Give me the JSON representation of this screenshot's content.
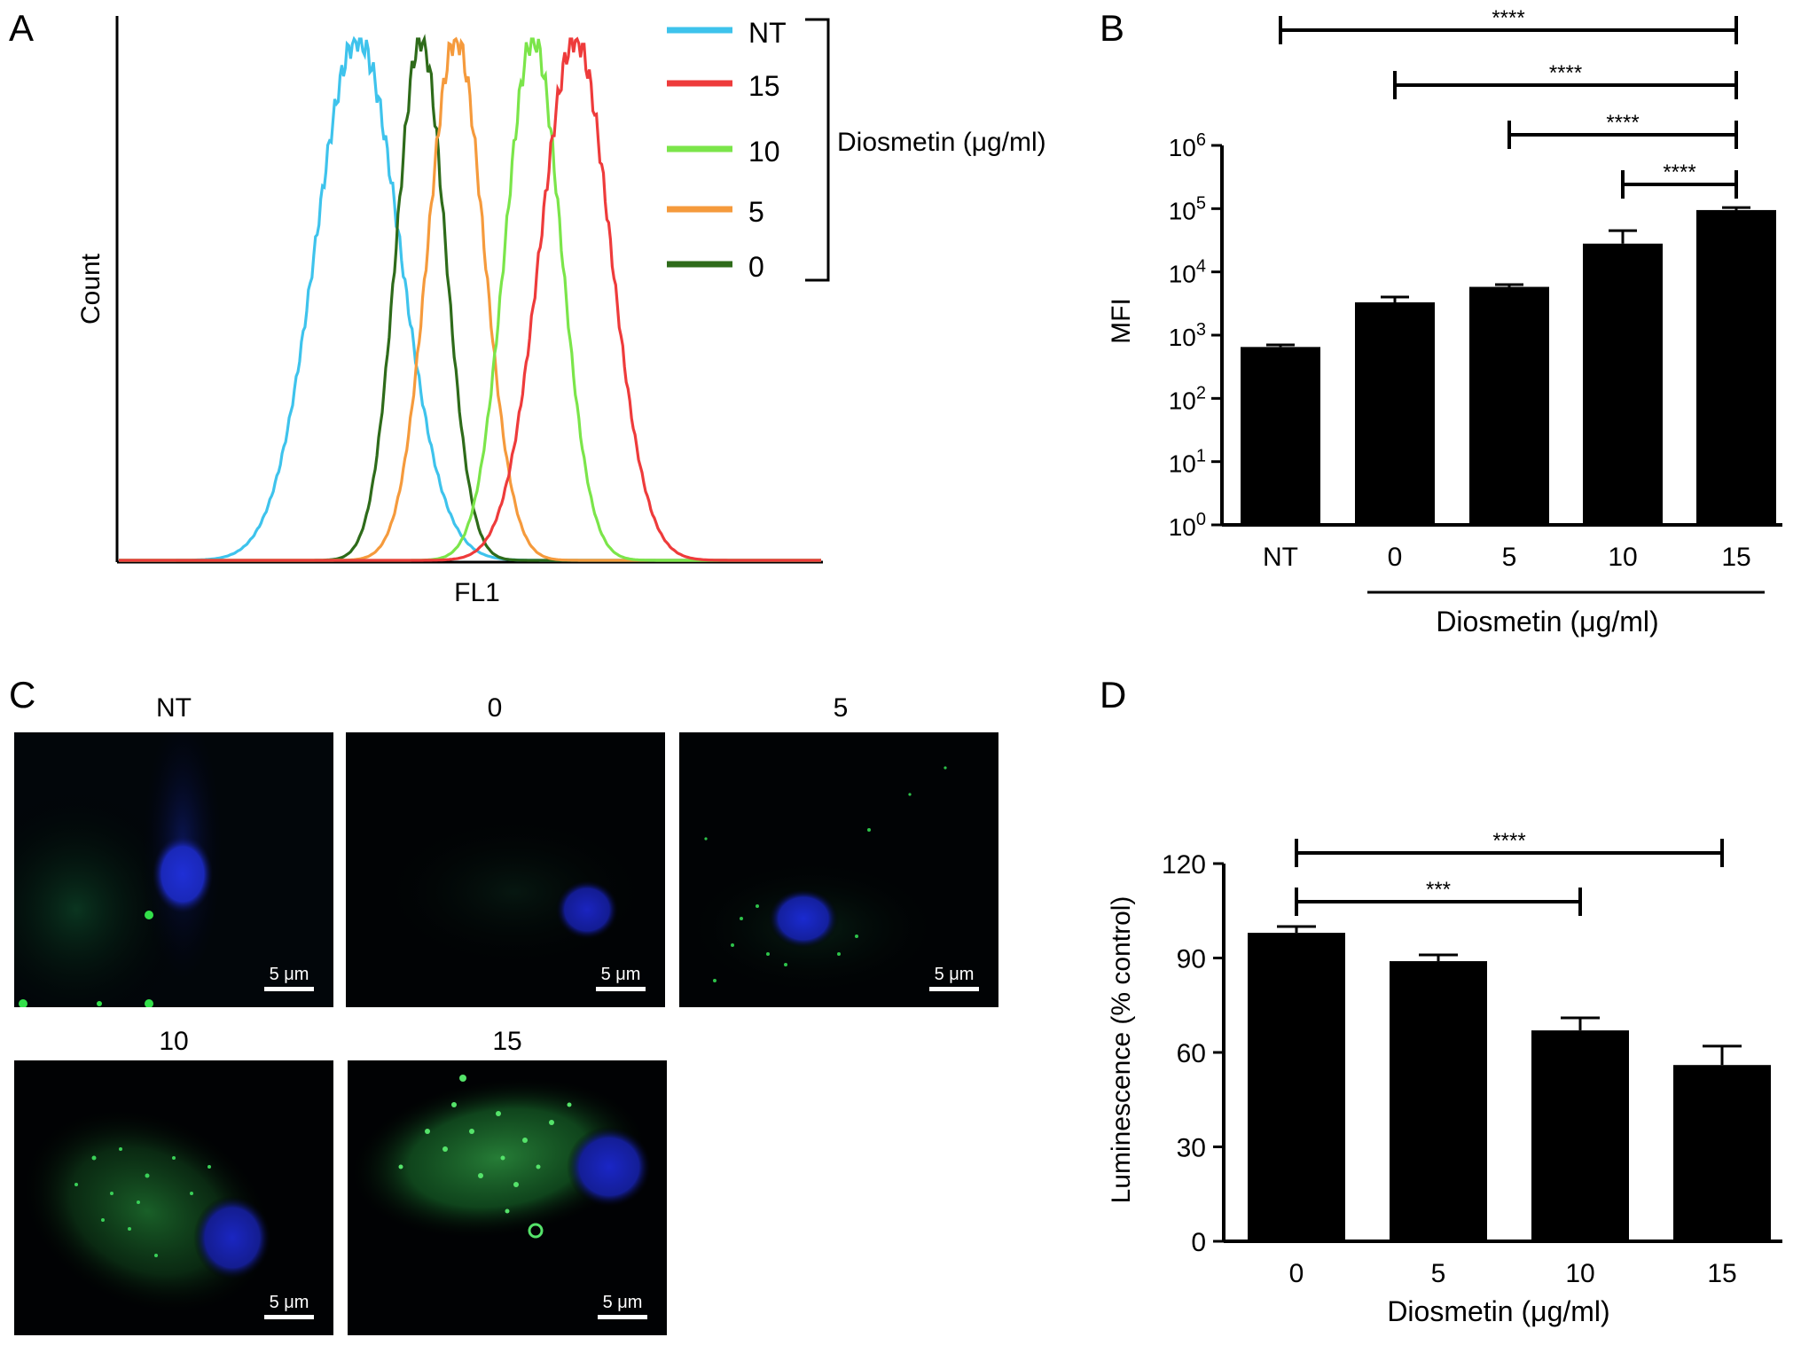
{
  "panels": {
    "a": {
      "letter": "A",
      "ylabel": "Count",
      "xlabel": "FL1",
      "legend_bracket_label": "Diosmetin (μg/ml)",
      "legend": [
        {
          "label": "NT",
          "color": "#3ec3ec"
        },
        {
          "label": "15",
          "color": "#ee3b3b"
        },
        {
          "label": "10",
          "color": "#7be54a"
        },
        {
          "label": "5",
          "color": "#f59a3c"
        },
        {
          "label": "0",
          "color": "#2e6b1a"
        }
      ]
    },
    "b": {
      "letter": "B",
      "ylabel": "MFI",
      "xgroup_label": "Diosmetin (μg/ml)",
      "yticks": [
        {
          "base": "10",
          "exp": "0"
        },
        {
          "base": "10",
          "exp": "1"
        },
        {
          "base": "10",
          "exp": "2"
        },
        {
          "base": "10",
          "exp": "3"
        },
        {
          "base": "10",
          "exp": "4"
        },
        {
          "base": "10",
          "exp": "5"
        },
        {
          "base": "10",
          "exp": "6"
        }
      ],
      "sig_label": "****"
    },
    "c": {
      "letter": "C",
      "scale_label": "5 μm",
      "titles": [
        "NT",
        "0",
        "5",
        "10",
        "15"
      ]
    },
    "d": {
      "letter": "D",
      "ylabel": "Luminescence (% control)",
      "xlabel": "Diosmetin (μg/ml)",
      "sig_labels": [
        "****",
        "***"
      ]
    }
  },
  "chart_data": [
    {
      "type": "line",
      "panel": "A",
      "ylabel": "Count",
      "xlabel": "FL1",
      "series": [
        {
          "name": "NT",
          "peak_x": 0.34,
          "width": 0.06,
          "color": "#3ec3ec"
        },
        {
          "name": "0",
          "peak_x": 0.43,
          "width": 0.035,
          "color": "#2e6b1a"
        },
        {
          "name": "5",
          "peak_x": 0.48,
          "width": 0.04,
          "color": "#f59a3c"
        },
        {
          "name": "10",
          "peak_x": 0.59,
          "width": 0.04,
          "color": "#7be54a"
        },
        {
          "name": "15",
          "peak_x": 0.65,
          "width": 0.05,
          "color": "#ee3b3b"
        }
      ]
    },
    {
      "type": "bar",
      "panel": "B",
      "categories": [
        "NT",
        "0",
        "5",
        "10",
        "15"
      ],
      "values": [
        650,
        3300,
        5800,
        28000,
        95000
      ],
      "errors": [
        50,
        700,
        500,
        17000,
        9000
      ],
      "ylabel": "MFI",
      "yscale": "log",
      "ylim": [
        1,
        1000000
      ],
      "significance": [
        {
          "from": "NT",
          "to": "15",
          "label": "****"
        },
        {
          "from": "0",
          "to": "15",
          "label": "****"
        },
        {
          "from": "5",
          "to": "15",
          "label": "****"
        },
        {
          "from": "10",
          "to": "15",
          "label": "****"
        }
      ]
    },
    {
      "type": "bar",
      "panel": "D",
      "categories": [
        "0",
        "5",
        "10",
        "15"
      ],
      "values": [
        98,
        89,
        67,
        56
      ],
      "errors": [
        2,
        2,
        4,
        6
      ],
      "xlabel": "Diosmetin (μg/ml)",
      "ylabel": "Luminescence (% control)",
      "ylim": [
        0,
        120
      ],
      "yticks": [
        0,
        30,
        60,
        90,
        120
      ],
      "significance": [
        {
          "from": "0",
          "to": "15",
          "label": "****"
        },
        {
          "from": "0",
          "to": "10",
          "label": "***"
        }
      ]
    }
  ]
}
